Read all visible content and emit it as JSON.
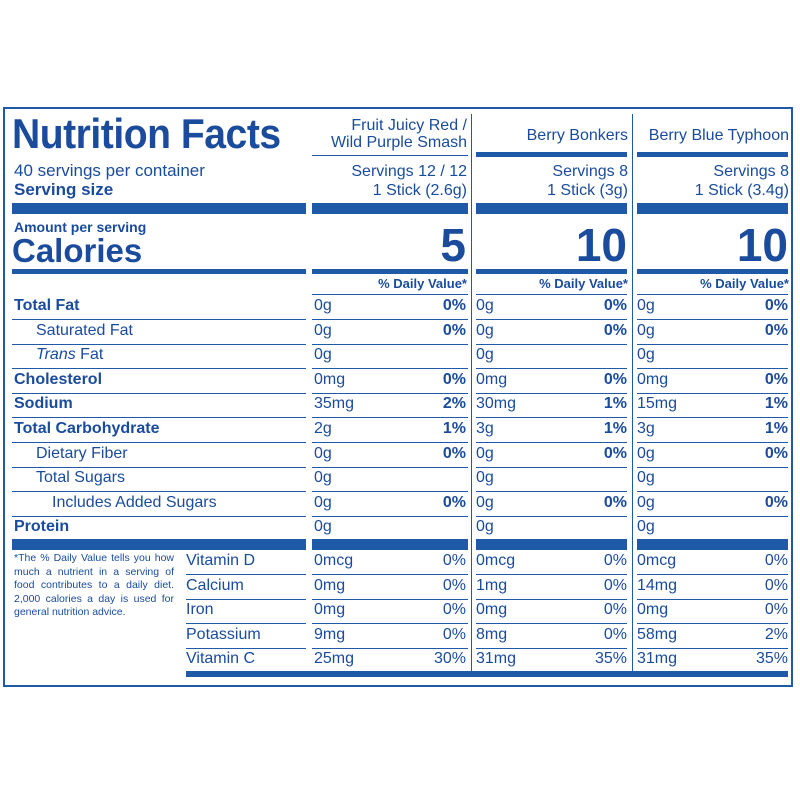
{
  "label": {
    "title": "Nutrition Facts",
    "servings_per_container": "40 servings per container",
    "serving_size_label": "Serving size",
    "amount_per_serving": "Amount per serving",
    "calories_label": "Calories",
    "footnote": "*The % Daily Value tells you how much a nutrient in a serving of food contributes to a daily diet. 2,000 calories a day is used for general nutrition advice."
  },
  "columns": [
    {
      "name_line1": "Fruit Juicy Red /",
      "name_line2": "Wild Purple Smash",
      "servings": "Servings 12 / 12",
      "serving_size": "1 Stick (2.6g)",
      "calories": "5",
      "dv_header": "% Daily Value*",
      "total_fat": {
        "amount": "0g",
        "dv": "0%"
      },
      "saturated_fat": {
        "amount": "0g",
        "dv": "0%"
      },
      "trans_fat": {
        "amount": "0g"
      },
      "cholesterol": {
        "amount": "0mg",
        "dv": "0%"
      },
      "sodium": {
        "amount": "35mg",
        "dv": "2%"
      },
      "total_carbohydrate": {
        "amount": "2g",
        "dv": "1%"
      },
      "dietary_fiber": {
        "amount": "0g",
        "dv": "0%"
      },
      "total_sugars": {
        "amount": "0g"
      },
      "added_sugars": {
        "amount": "0g",
        "dv": "0%"
      },
      "protein": {
        "amount": "0g"
      },
      "vitamin_d": {
        "amount": "0mcg",
        "dv": "0%"
      },
      "calcium": {
        "amount": "0mg",
        "dv": "0%"
      },
      "iron": {
        "amount": "0mg",
        "dv": "0%"
      },
      "potassium": {
        "amount": "9mg",
        "dv": "0%"
      },
      "vitamin_c": {
        "amount": "25mg",
        "dv": "30%"
      }
    },
    {
      "name_line1": "",
      "name_line2": "Berry Bonkers",
      "servings": "Servings 8",
      "serving_size": "1 Stick (3g)",
      "calories": "10",
      "dv_header": "% Daily Value*",
      "total_fat": {
        "amount": "0g",
        "dv": "0%"
      },
      "saturated_fat": {
        "amount": "0g",
        "dv": "0%"
      },
      "trans_fat": {
        "amount": "0g"
      },
      "cholesterol": {
        "amount": "0mg",
        "dv": "0%"
      },
      "sodium": {
        "amount": "30mg",
        "dv": "1%"
      },
      "total_carbohydrate": {
        "amount": "3g",
        "dv": "1%"
      },
      "dietary_fiber": {
        "amount": "0g",
        "dv": "0%"
      },
      "total_sugars": {
        "amount": "0g"
      },
      "added_sugars": {
        "amount": "0g",
        "dv": "0%"
      },
      "protein": {
        "amount": "0g"
      },
      "vitamin_d": {
        "amount": "0mcg",
        "dv": "0%"
      },
      "calcium": {
        "amount": "1mg",
        "dv": "0%"
      },
      "iron": {
        "amount": "0mg",
        "dv": "0%"
      },
      "potassium": {
        "amount": "8mg",
        "dv": "0%"
      },
      "vitamin_c": {
        "amount": "31mg",
        "dv": "35%"
      }
    },
    {
      "name_line1": "",
      "name_line2": "Berry Blue Typhoon",
      "servings": "Servings 8",
      "serving_size": "1 Stick (3.4g)",
      "calories": "10",
      "dv_header": "% Daily Value*",
      "total_fat": {
        "amount": "0g",
        "dv": "0%"
      },
      "saturated_fat": {
        "amount": "0g",
        "dv": "0%"
      },
      "trans_fat": {
        "amount": "0g"
      },
      "cholesterol": {
        "amount": "0mg",
        "dv": "0%"
      },
      "sodium": {
        "amount": "15mg",
        "dv": "1%"
      },
      "total_carbohydrate": {
        "amount": "3g",
        "dv": "1%"
      },
      "dietary_fiber": {
        "amount": "0g",
        "dv": "0%"
      },
      "total_sugars": {
        "amount": "0g"
      },
      "added_sugars": {
        "amount": "0g",
        "dv": "0%"
      },
      "protein": {
        "amount": "0g"
      },
      "vitamin_d": {
        "amount": "0mcg",
        "dv": "0%"
      },
      "calcium": {
        "amount": "14mg",
        "dv": "0%"
      },
      "iron": {
        "amount": "0mg",
        "dv": "0%"
      },
      "potassium": {
        "amount": "58mg",
        "dv": "2%"
      },
      "vitamin_c": {
        "amount": "31mg",
        "dv": "35%"
      }
    }
  ],
  "nutrients": [
    {
      "key": "total_fat",
      "label": "Total Fat"
    },
    {
      "key": "saturated_fat",
      "label": "Saturated Fat"
    },
    {
      "key": "trans_fat",
      "label_italic": "Trans",
      "label_rest": " Fat"
    },
    {
      "key": "cholesterol",
      "label": "Cholesterol"
    },
    {
      "key": "sodium",
      "label": "Sodium"
    },
    {
      "key": "total_carbohydrate",
      "label": "Total Carbohydrate"
    },
    {
      "key": "dietary_fiber",
      "label": "Dietary Fiber"
    },
    {
      "key": "total_sugars",
      "label": "Total Sugars"
    },
    {
      "key": "added_sugars",
      "label": "Includes Added Sugars"
    },
    {
      "key": "protein",
      "label": "Protein"
    }
  ],
  "vitamins": [
    {
      "key": "vitamin_d",
      "label": "Vitamin D"
    },
    {
      "key": "calcium",
      "label": "Calcium"
    },
    {
      "key": "iron",
      "label": "Iron"
    },
    {
      "key": "potassium",
      "label": "Potassium"
    },
    {
      "key": "vitamin_c",
      "label": "Vitamin C"
    }
  ],
  "colors": {
    "ink": "#1a4b9c",
    "rule": "#1e5aa8",
    "background": "#ffffff"
  }
}
